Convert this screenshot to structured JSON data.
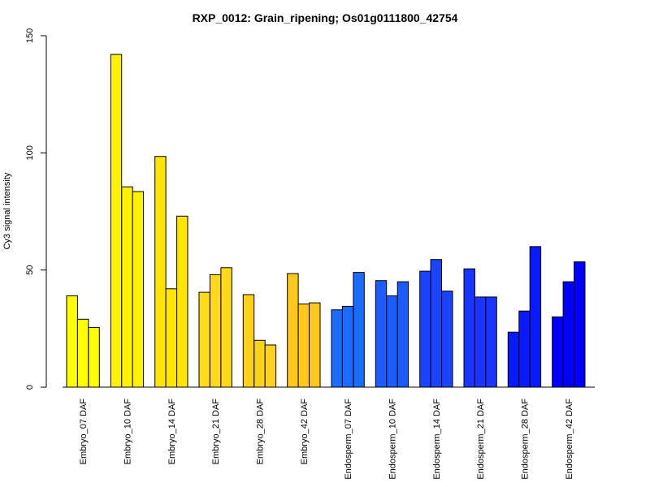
{
  "chart_data": {
    "type": "bar",
    "title": "RXP_0012: Grain_ripening; Os01g0111800_42754",
    "xlabel": "",
    "ylabel": "Cy3 signal intensity",
    "ylim": [
      0,
      150
    ],
    "yticks": [
      "0",
      "50",
      "100",
      "150"
    ],
    "grid": false,
    "categories": [
      "Embryo_07 DAF",
      "Embryo_10 DAF",
      "Embryo_14 DAF",
      "Embryo_21 DAF",
      "Embryo_28 DAF",
      "Embryo_42 DAF",
      "Endosperm_07 DAF",
      "Endosperm_10 DAF",
      "Endosperm_14 DAF",
      "Endosperm_21 DAF",
      "Endosperm_28 DAF",
      "Endosperm_42 DAF"
    ],
    "colors": [
      "#FFFF00",
      "#FFF200",
      "#FFE500",
      "#FFD91A",
      "#FFD21A",
      "#FFC81A",
      "#1A6BFF",
      "#1A5CFF",
      "#1A44FF",
      "#1A35FF",
      "#0A1AFF",
      "#0000FF"
    ],
    "values": [
      [
        39,
        29,
        25.5
      ],
      [
        142,
        85.5,
        83.5
      ],
      [
        98.5,
        42,
        73
      ],
      [
        40.5,
        48,
        51
      ],
      [
        39.5,
        20,
        18
      ],
      [
        48.5,
        35.5,
        36
      ],
      [
        33,
        34.5,
        49
      ],
      [
        45.5,
        39,
        45
      ],
      [
        49.5,
        54.5,
        41
      ],
      [
        50.5,
        38.5,
        38.5
      ],
      [
        23.5,
        32.5,
        60
      ],
      [
        30,
        45,
        53.5
      ]
    ]
  }
}
